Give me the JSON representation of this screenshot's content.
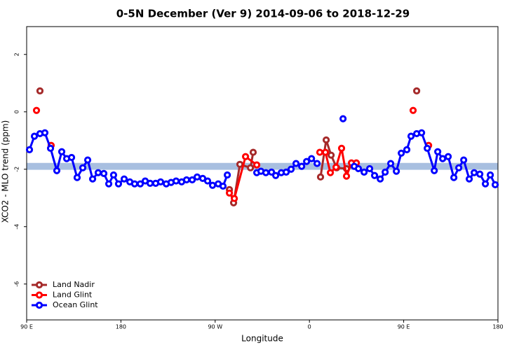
{
  "chart_data": {
    "type": "line",
    "title": "0-5N December (Ver 9)   2014-09-06 to 2018-12-29",
    "xlabel": "Longitude",
    "ylabel": "XCO2 - MLO trend (ppm)",
    "xlim": [
      90,
      540
    ],
    "ylim": [
      -7.25,
      2.97
    ],
    "xticks": [
      {
        "value": 90,
        "label": "90 E"
      },
      180,
      {
        "value": 270,
        "label": "90 W"
      },
      {
        "value": 360,
        "label": "0"
      },
      {
        "value": 450,
        "label": "90 E"
      },
      {
        "value": 540,
        "label": "180"
      }
    ],
    "yticks": [
      2,
      0,
      -2,
      -4,
      -6
    ],
    "band": [
      -2.02,
      -1.78
    ],
    "band_color": "#a8bfe0",
    "legend": "bottomleft",
    "series": [
      {
        "name": "Land Nadir",
        "color": "#a52a2a",
        "x": [
          102.7,
          200,
          283.6,
          287.6,
          293.6,
          303.7,
          306.3,
          340,
          370.6,
          376,
          380.7,
          386,
          395.4,
          400.8,
          430,
          462.4
        ],
        "values": [
          0.73,
          null,
          -2.71,
          -3.17,
          -1.83,
          -1.95,
          -1.41,
          null,
          -2.27,
          -0.98,
          -1.51,
          -1.95,
          -1.98,
          -1.85,
          null,
          0.73
        ]
      },
      {
        "name": "Land Glint",
        "color": "#ff0000",
        "x": [
          99.4,
          106,
          113.4,
          200,
          283.6,
          288.3,
          299,
          309.7,
          340,
          369.9,
          375.3,
          380,
          385.4,
          390.7,
          395.4,
          400.1,
          404.8,
          430,
          459,
          466,
          473.8
        ],
        "values": [
          0.05,
          null,
          -1.17,
          null,
          -2.83,
          -3.02,
          -1.56,
          -1.85,
          null,
          -1.41,
          -1.41,
          -2.12,
          -1.93,
          -1.27,
          -2.24,
          -1.78,
          -1.78,
          null,
          0.05,
          null,
          -1.17
        ]
      },
      {
        "name": "Ocean Glint",
        "color": "#0000ff",
        "x": [
          92.7,
          97.4,
          102.7,
          107.4,
          112.8,
          118.8,
          123.5,
          128.2,
          132.9,
          138.2,
          143.6,
          148.3,
          153,
          158.3,
          163.7,
          168.4,
          173,
          177.7,
          183.1,
          188.5,
          193.1,
          198.5,
          203.2,
          207.9,
          213.2,
          217.9,
          223.3,
          227.9,
          232.7,
          238,
          242.7,
          248.1,
          252.8,
          258.1,
          262.8,
          267.5,
          272.9,
          277.5,
          281.6,
          295,
          309.7,
          313.7,
          318.4,
          323.8,
          327.8,
          333.1,
          337.8,
          342.5,
          347.2,
          352.6,
          357.3,
          362,
          367.3,
          380,
          392.1,
          398,
          402.8,
          406.8,
          412.2,
          417.5,
          422.2,
          427.6,
          432.3,
          437.6,
          443,
          447.7,
          453,
          457,
          462.4,
          467.1,
          472.5,
          479.2,
          482.5,
          487.2,
          492.5,
          497.9,
          502.6,
          507.3,
          512.6,
          517.3,
          522.7,
          528,
          532.7,
          537.4
        ],
        "values": [
          -1.32,
          -0.85,
          -0.76,
          -0.73,
          -1.27,
          -2.05,
          -1.39,
          -1.63,
          -1.59,
          -2.29,
          -1.95,
          -1.68,
          -2.34,
          -2.12,
          -2.15,
          -2.51,
          -2.2,
          -2.51,
          -2.34,
          -2.44,
          -2.51,
          -2.51,
          -2.41,
          -2.49,
          -2.49,
          -2.44,
          -2.51,
          -2.46,
          -2.41,
          -2.44,
          -2.37,
          -2.37,
          -2.27,
          -2.32,
          -2.41,
          -2.56,
          -2.51,
          -2.59,
          -2.2,
          null,
          -2.12,
          -2.07,
          -2.12,
          -2.1,
          -2.22,
          -2.12,
          -2.1,
          -2.0,
          -1.8,
          -1.9,
          -1.73,
          -1.63,
          -1.8,
          null,
          -0.24,
          null,
          -1.9,
          -1.98,
          -2.1,
          -1.98,
          -2.22,
          -2.34,
          -2.1,
          -1.8,
          -2.07,
          -1.44,
          -1.32,
          -0.85,
          -0.76,
          -0.73,
          -1.27,
          -2.05,
          -1.39,
          -1.63,
          -1.56,
          -2.29,
          -1.95,
          -1.68,
          -2.34,
          -2.12,
          -2.17,
          -2.51,
          -2.2,
          -2.54
        ]
      }
    ]
  }
}
